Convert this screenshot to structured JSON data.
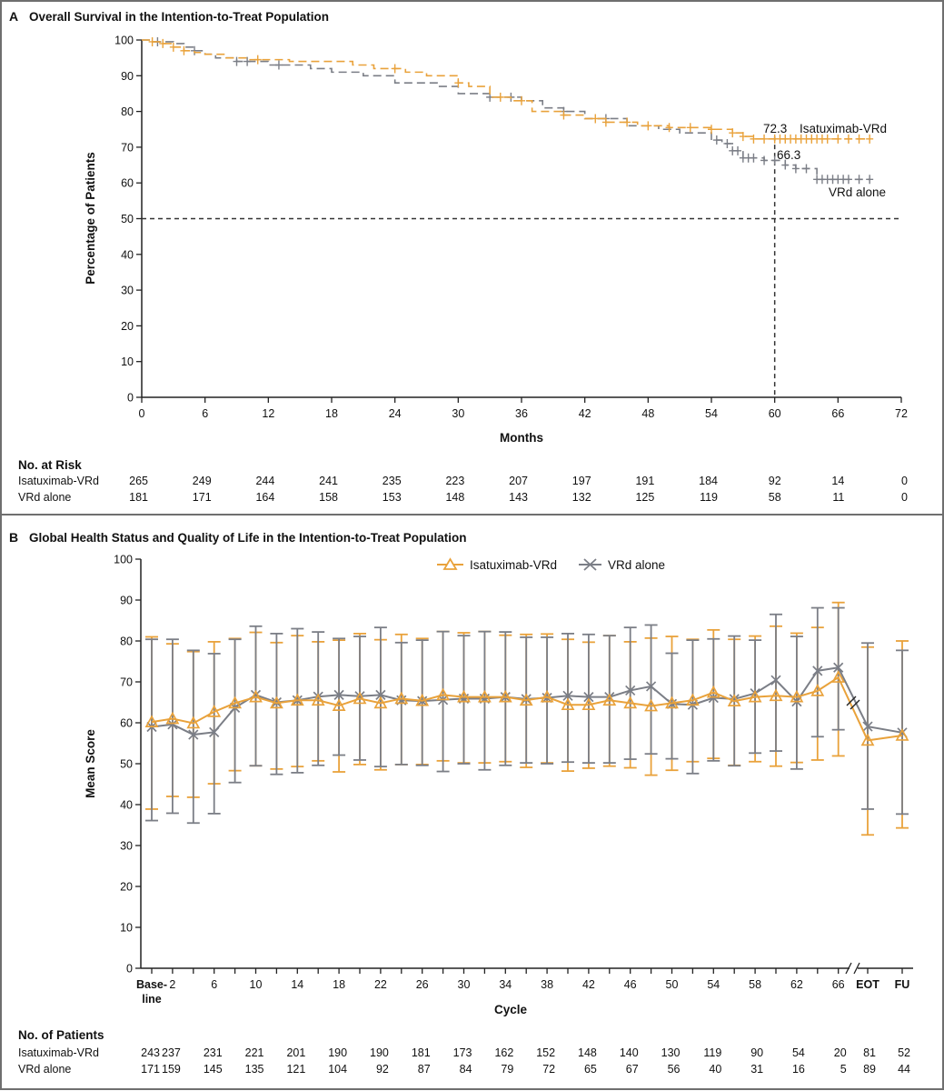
{
  "colors": {
    "isa": "#E9A23B",
    "vrd": "#7B7E86",
    "frame": "#6f6f6f"
  },
  "chart_data": [
    {
      "panel": "A",
      "type": "line",
      "subtype": "kaplan-meier",
      "title": "Overall Survival in the Intention-to-Treat Population",
      "xlabel": "Months",
      "ylabel": "Percentage of Patients",
      "xlim": [
        0,
        72
      ],
      "ylim": [
        0,
        100
      ],
      "xticks": [
        0,
        6,
        12,
        18,
        24,
        30,
        36,
        42,
        48,
        54,
        60,
        66,
        72
      ],
      "yticks": [
        0,
        10,
        20,
        30,
        40,
        50,
        60,
        70,
        80,
        90,
        100
      ],
      "reference_lines": {
        "y": 50,
        "x": 60
      },
      "annotations": {
        "isa_value": "72.3",
        "vrd_value": "66.3"
      },
      "series": [
        {
          "name": "Isatuximab-VRd",
          "color": "#E9A23B",
          "steps": [
            [
              0,
              100
            ],
            [
              1,
              99.5
            ],
            [
              2,
              99
            ],
            [
              3,
              98
            ],
            [
              4,
              97
            ],
            [
              5,
              96.5
            ],
            [
              6,
              96
            ],
            [
              8,
              95
            ],
            [
              10,
              94.5
            ],
            [
              14,
              94
            ],
            [
              20,
              93
            ],
            [
              22,
              92
            ],
            [
              25,
              91
            ],
            [
              27,
              90
            ],
            [
              30,
              88
            ],
            [
              31,
              87
            ],
            [
              33,
              84
            ],
            [
              35,
              83
            ],
            [
              37,
              80
            ],
            [
              40,
              79
            ],
            [
              42,
              78
            ],
            [
              44,
              77
            ],
            [
              47,
              76
            ],
            [
              50,
              75.5
            ],
            [
              54,
              75
            ],
            [
              56,
              74
            ],
            [
              57,
              73
            ],
            [
              58,
              72.3
            ],
            [
              69,
              72.3
            ]
          ],
          "censored": [
            1,
            2,
            3,
            4,
            11,
            24,
            30,
            34,
            36,
            40,
            43,
            44,
            46,
            48,
            50,
            52,
            54,
            56,
            57,
            58,
            59,
            60,
            60.5,
            61,
            61.5,
            62,
            62.5,
            63,
            63.5,
            64,
            64.5,
            65,
            66,
            67,
            68,
            69
          ]
        },
        {
          "name": "VRd alone",
          "color": "#7B7E86",
          "steps": [
            [
              0,
              100
            ],
            [
              1,
              99.5
            ],
            [
              3,
              99
            ],
            [
              4,
              98
            ],
            [
              5,
              97
            ],
            [
              6,
              96
            ],
            [
              7,
              95
            ],
            [
              9,
              94
            ],
            [
              12,
              93
            ],
            [
              16,
              92
            ],
            [
              18,
              91
            ],
            [
              21,
              90
            ],
            [
              24,
              88
            ],
            [
              28,
              87
            ],
            [
              30,
              85
            ],
            [
              33,
              84
            ],
            [
              36,
              83
            ],
            [
              38,
              81
            ],
            [
              40,
              80
            ],
            [
              42,
              78
            ],
            [
              46,
              76
            ],
            [
              49,
              75
            ],
            [
              51,
              74
            ],
            [
              54,
              72
            ],
            [
              55,
              71
            ],
            [
              56,
              69
            ],
            [
              57,
              67
            ],
            [
              59,
              66.3
            ],
            [
              61,
              65
            ],
            [
              62,
              64
            ],
            [
              64,
              61
            ],
            [
              69,
              61
            ]
          ],
          "censored": [
            1.5,
            5,
            9,
            10,
            13,
            33,
            35,
            40,
            44,
            54.5,
            55.5,
            56,
            56.5,
            57,
            57.5,
            58,
            59,
            60,
            61,
            62,
            63,
            64,
            64.5,
            65,
            65.5,
            66,
            66.5,
            67,
            68,
            69
          ]
        }
      ],
      "risk_table": {
        "label": "No. at Risk",
        "months": [
          0,
          6,
          12,
          18,
          24,
          30,
          36,
          42,
          48,
          54,
          60,
          66,
          72
        ],
        "rows": [
          {
            "name": "Isatuximab-VRd",
            "values": [
              "265",
              "249",
              "244",
              "241",
              "235",
              "223",
              "207",
              "197",
              "191",
              "184",
              "92",
              "14",
              "0"
            ]
          },
          {
            "name": "VRd alone",
            "values": [
              "181",
              "171",
              "164",
              "158",
              "153",
              "148",
              "143",
              "132",
              "125",
              "119",
              "58",
              "11",
              "0"
            ]
          }
        ]
      }
    },
    {
      "panel": "B",
      "type": "line",
      "subtype": "mean-with-error-bars",
      "title": "Global Health Status and Quality of Life in the Intention-to-Treat Population",
      "xlabel": "Cycle",
      "ylabel": "Mean Score",
      "ylim": [
        0,
        100
      ],
      "yticks": [
        0,
        10,
        20,
        30,
        40,
        50,
        60,
        70,
        80,
        90,
        100
      ],
      "xtick_labels": [
        "Base-\nline",
        "2",
        "6",
        "10",
        "14",
        "18",
        "22",
        "26",
        "30",
        "34",
        "38",
        "42",
        "46",
        "50",
        "54",
        "58",
        "62",
        "66",
        "EOT",
        "FU"
      ],
      "legend": {
        "placement": "top-center",
        "entries": [
          "Isatuximab-VRd",
          "VRd alone"
        ]
      },
      "x": [
        "Baseline",
        2,
        4,
        6,
        8,
        10,
        12,
        14,
        16,
        18,
        20,
        22,
        24,
        26,
        28,
        30,
        32,
        34,
        36,
        38,
        40,
        42,
        44,
        46,
        48,
        50,
        52,
        54,
        56,
        58,
        60,
        62,
        64,
        66,
        "EOT",
        "FU"
      ],
      "series": [
        {
          "name": "Isatuximab-VRd",
          "marker": "triangle",
          "color": "#E9A23B",
          "values": [
            60.2,
            61.0,
            59.9,
            62.7,
            64.8,
            66.3,
            64.8,
            65.5,
            65.5,
            64.2,
            65.9,
            64.8,
            65.9,
            65.4,
            66.8,
            66.3,
            66.3,
            66.3,
            65.5,
            66.3,
            64.4,
            64.4,
            65.5,
            64.8,
            64.1,
            64.8,
            65.5,
            67.4,
            65.3,
            66.3,
            66.6,
            66.3,
            67.8,
            71.1,
            55.7,
            56.9
          ],
          "upper": [
            81.0,
            79.3,
            77.4,
            79.8,
            80.6,
            82.1,
            79.6,
            81.3,
            79.8,
            80.2,
            81.8,
            80.3,
            81.6,
            80.6,
            82.3,
            82.0,
            82.3,
            81.4,
            81.6,
            81.7,
            80.4,
            79.7,
            81.3,
            79.8,
            80.7,
            81.1,
            80.4,
            82.7,
            80.4,
            81.2,
            83.6,
            81.9,
            83.3,
            89.4,
            78.5,
            80.0
          ],
          "lower": [
            38.9,
            42.0,
            41.8,
            45.1,
            48.3,
            49.5,
            48.7,
            49.3,
            50.7,
            48.0,
            49.8,
            48.5,
            49.8,
            49.8,
            50.7,
            50.2,
            50.2,
            50.5,
            49.1,
            50.2,
            48.2,
            48.9,
            49.4,
            49.0,
            47.2,
            48.4,
            50.5,
            51.3,
            49.6,
            50.5,
            49.4,
            50.3,
            50.9,
            51.9,
            32.6,
            34.3
          ]
        },
        {
          "name": "VRd alone",
          "marker": "x",
          "color": "#7B7E86",
          "values": [
            59.0,
            59.6,
            57.1,
            57.7,
            63.7,
            66.8,
            65.0,
            65.5,
            66.4,
            66.8,
            66.5,
            66.8,
            65.5,
            65.3,
            65.6,
            65.9,
            65.9,
            66.3,
            65.8,
            66.1,
            66.6,
            66.3,
            66.3,
            67.9,
            68.9,
            64.6,
            64.4,
            66.1,
            65.8,
            67.2,
            70.4,
            65.2,
            72.7,
            73.5,
            59.1,
            57.6
          ],
          "upper": [
            80.4,
            80.4,
            77.7,
            76.9,
            80.4,
            83.6,
            81.8,
            83.0,
            82.2,
            80.6,
            81.1,
            83.3,
            79.6,
            80.2,
            82.3,
            81.3,
            82.3,
            82.2,
            80.9,
            80.9,
            81.8,
            81.6,
            81.3,
            83.3,
            83.9,
            77.0,
            80.2,
            80.5,
            81.2,
            80.2,
            86.5,
            81.1,
            88.1,
            88.1,
            79.5,
            77.7
          ],
          "lower": [
            36.1,
            37.9,
            35.5,
            37.8,
            45.4,
            49.5,
            47.4,
            47.8,
            49.6,
            52.1,
            50.9,
            49.3,
            49.8,
            49.6,
            48.1,
            50.0,
            48.5,
            49.6,
            50.2,
            50.0,
            50.4,
            50.2,
            50.2,
            51.1,
            52.4,
            51.2,
            47.6,
            50.7,
            49.5,
            52.6,
            53.1,
            48.7,
            56.6,
            58.3,
            38.9,
            37.7
          ]
        }
      ],
      "patients_table": {
        "label": "No. of Patients",
        "x": [
          "Baseline",
          2,
          6,
          10,
          14,
          18,
          22,
          26,
          30,
          34,
          38,
          42,
          46,
          50,
          54,
          58,
          62,
          66,
          "EOT",
          "FU"
        ],
        "rows": [
          {
            "name": "Isatuximab-VRd",
            "values": [
              "243",
              "237",
              "231",
              "221",
              "201",
              "190",
              "190",
              "181",
              "173",
              "162",
              "152",
              "148",
              "140",
              "130",
              "119",
              "90",
              "54",
              "20",
              "81",
              "52"
            ]
          },
          {
            "name": "VRd alone",
            "values": [
              "171",
              "159",
              "145",
              "135",
              "121",
              "104",
              "92",
              "87",
              "84",
              "79",
              "72",
              "65",
              "67",
              "56",
              "40",
              "31",
              "16",
              "5",
              "89",
              "44"
            ]
          }
        ]
      }
    }
  ]
}
